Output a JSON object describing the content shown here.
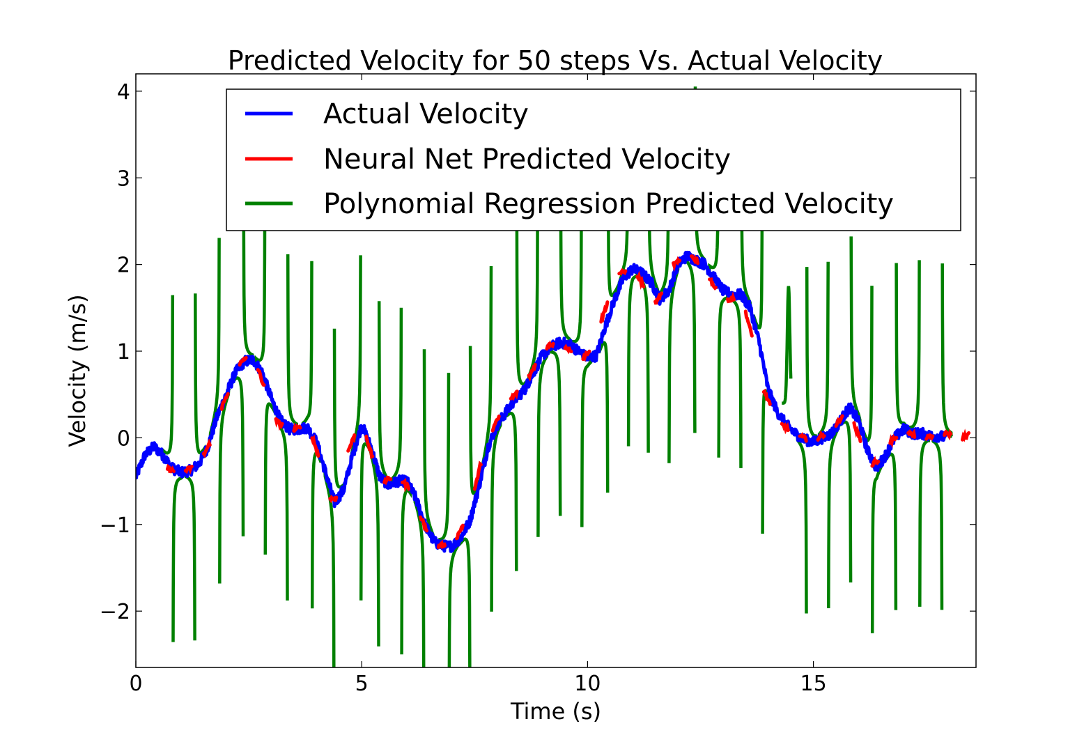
{
  "chart_data": {
    "type": "line",
    "title": "Predicted Velocity for 50 steps Vs. Actual Velocity",
    "xlabel": "Time (s)",
    "ylabel": "Velocity (m/s)",
    "xlim": [
      0,
      18.6
    ],
    "ylim": [
      -2.65,
      4.2
    ],
    "xticks": [
      0,
      5,
      10,
      15
    ],
    "xtick_labels": [
      "0",
      "5",
      "10",
      "15"
    ],
    "yticks": [
      -2,
      -1,
      0,
      1,
      2,
      3,
      4
    ],
    "ytick_labels": [
      "−2",
      "−1",
      "0",
      "1",
      "2",
      "3",
      "4"
    ],
    "grid": false,
    "legend_position": "upper-right",
    "series": [
      {
        "name": "Actual Velocity",
        "color": "#0000ff",
        "style": "noisy",
        "x": [
          0,
          0.2,
          0.4,
          0.6,
          0.8,
          1.0,
          1.2,
          1.4,
          1.6,
          1.8,
          2.0,
          2.2,
          2.4,
          2.6,
          2.8,
          3.0,
          3.2,
          3.4,
          3.6,
          3.8,
          4.0,
          4.2,
          4.4,
          4.6,
          4.8,
          5.0,
          5.2,
          5.4,
          5.6,
          5.8,
          6.0,
          6.2,
          6.4,
          6.6,
          6.8,
          7.0,
          7.2,
          7.4,
          7.6,
          7.8,
          8.0,
          8.2,
          8.4,
          8.6,
          8.8,
          9.0,
          9.2,
          9.4,
          9.6,
          9.8,
          10.0,
          10.2,
          10.4,
          10.6,
          10.8,
          11.0,
          11.2,
          11.4,
          11.6,
          11.8,
          12.0,
          12.2,
          12.4,
          12.6,
          12.8,
          13.0,
          13.2,
          13.4,
          13.6,
          13.8,
          14.0,
          14.2,
          14.4,
          14.6,
          14.8,
          15.0,
          15.2,
          15.4,
          15.6,
          15.8,
          16.0,
          16.2,
          16.4,
          16.6,
          16.8,
          17.0,
          17.2,
          17.4,
          17.6,
          17.8,
          17.95
        ],
        "y": [
          -0.45,
          -0.2,
          -0.1,
          -0.2,
          -0.35,
          -0.4,
          -0.38,
          -0.3,
          -0.1,
          0.25,
          0.5,
          0.75,
          0.88,
          0.9,
          0.75,
          0.45,
          0.2,
          0.1,
          0.1,
          0.12,
          -0.05,
          -0.4,
          -0.75,
          -0.6,
          -0.2,
          0.15,
          -0.1,
          -0.45,
          -0.55,
          -0.5,
          -0.5,
          -0.7,
          -1.0,
          -1.2,
          -1.25,
          -1.25,
          -1.15,
          -0.95,
          -0.55,
          -0.1,
          0.15,
          0.3,
          0.45,
          0.55,
          0.75,
          0.95,
          1.05,
          1.1,
          1.08,
          1.0,
          0.92,
          0.95,
          1.3,
          1.6,
          1.85,
          1.95,
          1.9,
          1.8,
          1.6,
          1.7,
          2.0,
          2.1,
          2.05,
          2.0,
          1.85,
          1.7,
          1.65,
          1.65,
          1.5,
          1.1,
          0.55,
          0.3,
          0.15,
          0.05,
          -0.02,
          -0.05,
          0.0,
          0.05,
          0.2,
          0.35,
          0.2,
          -0.15,
          -0.35,
          -0.2,
          0.0,
          0.1,
          0.05,
          0.05,
          0.02,
          0.02,
          0.0
        ]
      },
      {
        "name": "Neural Net Predicted Velocity",
        "color": "#ff0000",
        "style": "segmented",
        "x": [
          0.7,
          0.9,
          1.1,
          1.3,
          1.5,
          1.7,
          1.9,
          2.1,
          2.3,
          2.5,
          2.7,
          2.9,
          3.1,
          3.3,
          3.5,
          3.7,
          3.9,
          4.1,
          4.3,
          4.5,
          4.7,
          4.9,
          5.1,
          5.3,
          5.5,
          5.7,
          5.9,
          6.1,
          6.3,
          6.5,
          6.7,
          6.9,
          7.1,
          7.3,
          7.5,
          7.7,
          7.9,
          8.1,
          8.3,
          8.5,
          8.7,
          8.9,
          9.1,
          9.3,
          9.5,
          9.7,
          9.9,
          10.1,
          10.3,
          10.5,
          10.7,
          10.9,
          11.1,
          11.3,
          11.5,
          11.7,
          11.9,
          12.1,
          12.3,
          12.5,
          12.7,
          12.9,
          13.1,
          13.3,
          13.5,
          13.7,
          13.9,
          14.1,
          14.3,
          14.5,
          14.7,
          14.9,
          15.1,
          15.3,
          15.5,
          15.7,
          15.9,
          16.1,
          16.3,
          16.5,
          16.7,
          16.9,
          17.1,
          17.3,
          17.5,
          17.7,
          17.9,
          18.1,
          18.3,
          18.5
        ],
        "y": [
          -0.35,
          -0.4,
          -0.38,
          -0.32,
          -0.2,
          0.0,
          0.35,
          0.6,
          0.85,
          0.95,
          0.8,
          0.5,
          0.2,
          0.12,
          0.1,
          0.12,
          0.02,
          -0.3,
          -0.7,
          -0.7,
          -0.15,
          0.1,
          0.02,
          -0.35,
          -0.5,
          -0.45,
          -0.5,
          -0.6,
          -0.9,
          -1.15,
          -1.25,
          -1.22,
          -1.15,
          -0.95,
          -0.6,
          -0.15,
          0.1,
          0.3,
          0.45,
          0.55,
          0.7,
          0.9,
          1.05,
          1.1,
          1.05,
          1.0,
          0.92,
          1.05,
          1.35,
          1.65,
          1.9,
          1.92,
          1.88,
          1.7,
          1.55,
          1.7,
          2.0,
          2.05,
          2.1,
          2.0,
          1.85,
          1.65,
          1.6,
          1.6,
          1.45,
          1.05,
          0.55,
          0.3,
          0.15,
          0.08,
          0.02,
          -0.03,
          0.0,
          0.05,
          0.15,
          0.3,
          0.15,
          -0.1,
          -0.3,
          -0.25,
          -0.05,
          0.05,
          0.05,
          0.02,
          0.0,
          0.02,
          0.05,
          0.03,
          0.0,
          0.05
        ]
      },
      {
        "name": "Polynomial Regression Predicted Velocity",
        "color": "#008000",
        "style": "poles",
        "anchors_x": [
          0.75,
          0.85,
          1.25,
          1.7,
          1.8,
          1.95,
          2.35,
          2.5,
          2.85,
          3.35,
          3.85,
          3.95,
          4.35,
          4.4,
          4.45,
          4.8,
          4.95,
          5.3,
          5.35,
          5.7,
          5.85,
          6.25,
          6.35,
          6.85,
          7.3,
          7.35,
          7.8,
          8.0,
          8.35,
          8.85,
          9.3,
          9.4,
          9.8,
          9.95,
          10.4,
          10.5,
          10.85,
          10.95,
          11.3,
          11.4,
          11.75,
          11.8,
          11.95,
          12.25,
          12.45,
          12.75,
          12.9,
          13.25,
          13.35,
          13.75,
          13.85,
          14.35,
          14.45,
          14.55,
          14.75,
          14.95,
          15.2,
          15.35,
          15.6,
          15.75,
          15.9,
          16.2,
          16.35,
          16.7,
          16.8,
          17.2,
          17.35,
          17.75,
          17.8
        ],
        "poles_x": [
          0.82,
          1.31,
          1.85,
          2.38,
          2.86,
          3.36,
          3.9,
          4.39,
          4.98,
          5.38,
          5.88,
          6.38,
          6.93,
          7.4,
          7.87,
          8.43,
          8.9,
          9.4,
          9.87,
          10.45,
          10.9,
          11.35,
          11.8,
          12.38,
          12.9,
          13.4,
          13.87,
          14.85,
          15.33,
          15.83,
          16.3,
          16.83,
          17.35,
          17.85
        ]
      }
    ]
  }
}
